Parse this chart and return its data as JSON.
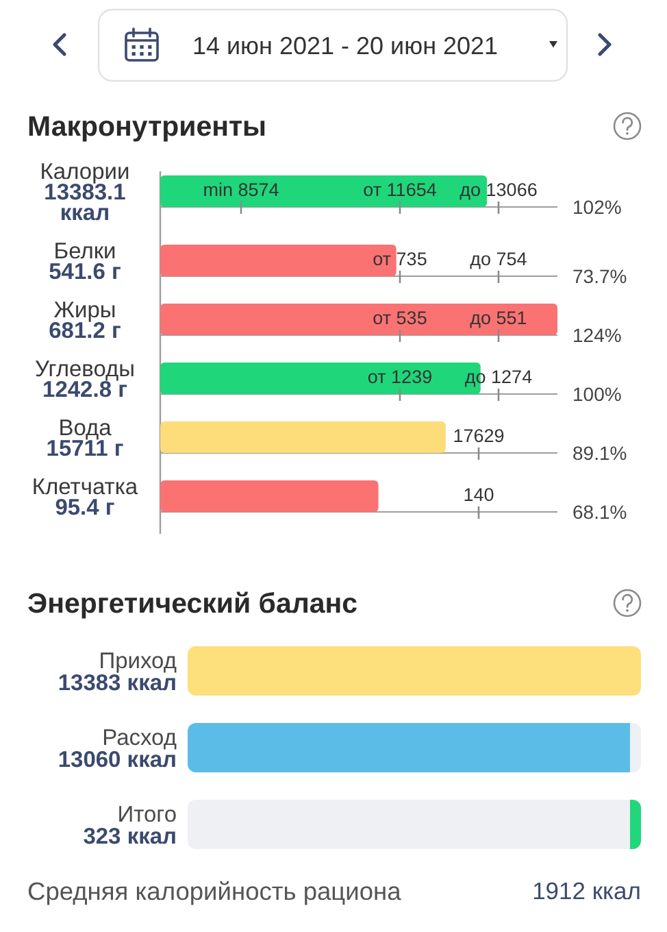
{
  "chart_data": [
    {
      "type": "bar",
      "orientation": "horizontal",
      "title": "Макронутриенты",
      "categories": [
        "Калории\n13383.1 ккал",
        "Белки\n541.6 г",
        "Жиры\n681.2 г",
        "Углеводы\n1242.8 г",
        "Вода\n15711 г",
        "Клетчатка\n95.4 г"
      ],
      "values": [
        102,
        73.7,
        124,
        100,
        89.1,
        68.1
      ],
      "colors": [
        "#20d67a",
        "#fb7272",
        "#fb7272",
        "#20d67a",
        "#fddc7a",
        "#fb7272"
      ],
      "value_labels": [
        "102%",
        "73.7%",
        "124%",
        "100%",
        "89.1%",
        "68.1%"
      ],
      "xlim": [
        0,
        124
      ],
      "grid": "y",
      "annotations": [
        "14 июн 2021 - 20 июн 2021",
        "min 8574",
        "от 11654",
        "до 13066",
        "от 735",
        "до 754",
        "от 535",
        "до 551",
        "от 1239",
        "до 1274",
        "17629",
        "140"
      ]
    },
    {
      "type": "bar",
      "orientation": "horizontal",
      "stacked": true,
      "title": "Энергетический баланс",
      "categories": [
        "Приход",
        "Расход",
        "Итого\n323 ккал"
      ],
      "series": [
        {
          "colors": [
            "#fddf7b",
            "#5cbce8",
            "#eef0f3"
          ],
          "values": [
            13383,
            13060,
            13060
          ],
          "value_labels": [
            "13383 ккал",
            "13060 ккал",
            null
          ]
        },
        {
          "colors": [
            null,
            "#eef0f3",
            "#22d67b"
          ],
          "values": [
            null,
            323,
            323
          ]
        }
      ],
      "xlim": [
        0,
        13383
      ],
      "annotations": [
        "Средняя калорийность рациона",
        "1912 ккал"
      ]
    }
  ]
}
